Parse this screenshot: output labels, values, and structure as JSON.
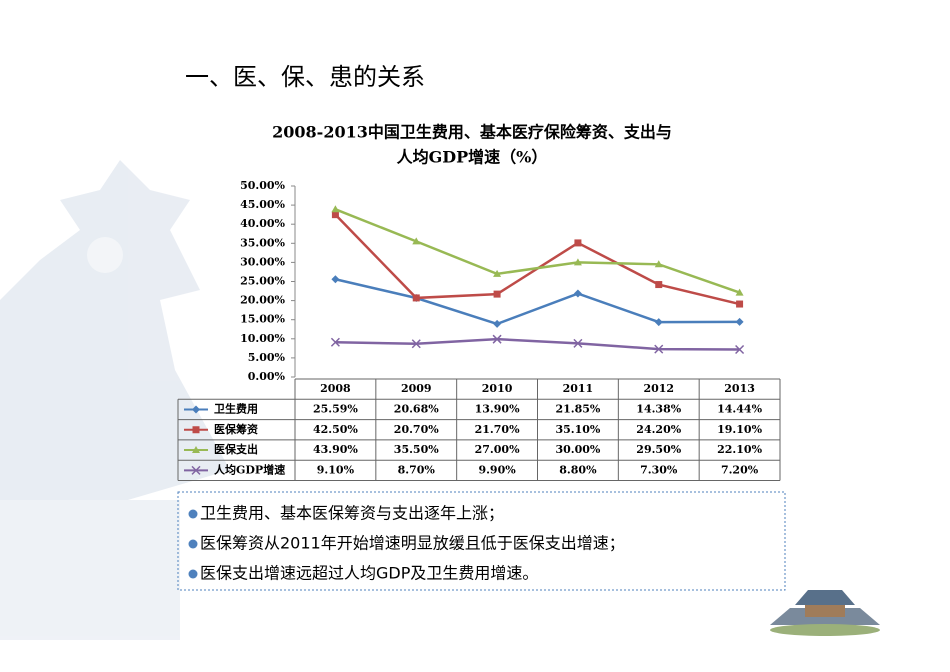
{
  "heading": "一、医、保、患的关系",
  "chart_data": {
    "type": "line",
    "title": [
      "2008-2013中国卫生费用、基本医疗保险筹资、支出与",
      "人均GDP增速（%）"
    ],
    "categories": [
      "2008",
      "2009",
      "2010",
      "2011",
      "2012",
      "2013"
    ],
    "series": [
      {
        "name": "卫生费用",
        "color": "#4a7ebb",
        "marker": "diamond",
        "values": [
          25.59,
          20.68,
          13.9,
          21.85,
          14.38,
          14.44
        ],
        "value_labels": [
          "25.59%",
          "20.68%",
          "13.90%",
          "21.85%",
          "14.38%",
          "14.44%"
        ]
      },
      {
        "name": "医保筹资",
        "color": "#be4b48",
        "marker": "square",
        "values": [
          42.5,
          20.7,
          21.7,
          35.1,
          24.2,
          19.1
        ],
        "value_labels": [
          "42.50%",
          "20.70%",
          "21.70%",
          "35.10%",
          "24.20%",
          "19.10%"
        ]
      },
      {
        "name": "医保支出",
        "color": "#98b954",
        "marker": "triangle",
        "values": [
          43.9,
          35.5,
          27.0,
          30.0,
          29.5,
          22.1
        ],
        "value_labels": [
          "43.90%",
          "35.50%",
          "27.00%",
          "30.00%",
          "29.50%",
          "22.10%"
        ]
      },
      {
        "name": "人均GDP增速",
        "color": "#8064a2",
        "marker": "x",
        "values": [
          9.1,
          8.7,
          9.9,
          8.8,
          7.3,
          7.2
        ],
        "value_labels": [
          "9.10%",
          "8.70%",
          "9.90%",
          "8.80%",
          "7.30%",
          "7.20%"
        ]
      }
    ],
    "ylim": [
      0,
      50
    ],
    "yticks": [
      {
        "value": 0,
        "label": "0.00%"
      },
      {
        "value": 5,
        "label": "5.00%"
      },
      {
        "value": 10,
        "label": "10.00%"
      },
      {
        "value": 15,
        "label": "15.00%"
      },
      {
        "value": 20,
        "label": "20.00%"
      },
      {
        "value": 25,
        "label": "25.00%"
      },
      {
        "value": 30,
        "label": "30.00%"
      },
      {
        "value": 35,
        "label": "35.00%"
      },
      {
        "value": 40,
        "label": "40.00%"
      },
      {
        "value": 45,
        "label": "45.00%"
      },
      {
        "value": 50,
        "label": "50.00%"
      }
    ],
    "grid": false
  },
  "bullets": [
    "卫生费用、基本医保筹资与支出逐年上涨；",
    "医保筹资从2011年开始增速明显放缓且低于医保支出增速；",
    "医保支出增速远超过人均GDP及卫生费用增速。"
  ]
}
